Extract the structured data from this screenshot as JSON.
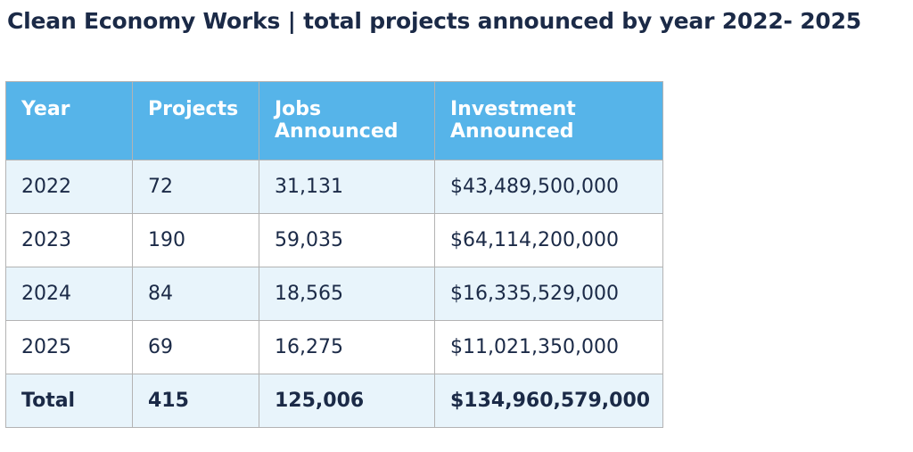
{
  "title": "Clean Economy Works | total projects announced by year 2022- 2025",
  "chart_data": {
    "type": "table",
    "title": "Clean Economy Works | total projects announced by year 2022- 2025",
    "columns": [
      "Year",
      "Projects",
      "Jobs\nAnnounced",
      "Investment\nAnnounced"
    ],
    "rows": [
      {
        "year": "2022",
        "projects": "72",
        "jobs": "31,131",
        "investment": "$43,489,500,000"
      },
      {
        "year": "2023",
        "projects": "190",
        "jobs": "59,035",
        "investment": "$64,114,200,000"
      },
      {
        "year": "2024",
        "projects": "84",
        "jobs": "18,565",
        "investment": "$16,335,529,000"
      },
      {
        "year": "2025",
        "projects": "69",
        "jobs": "16,275",
        "investment": "$11,021,350,000"
      }
    ],
    "total": {
      "label": "Total",
      "projects": "415",
      "jobs": "125,006",
      "investment": "$134,960,579,000"
    }
  },
  "colors": {
    "header_bg": "#56b4e9",
    "header_text": "#ffffff",
    "shaded_row": "#e8f4fb",
    "text": "#1b2a47",
    "border": "#b3b3b3"
  }
}
